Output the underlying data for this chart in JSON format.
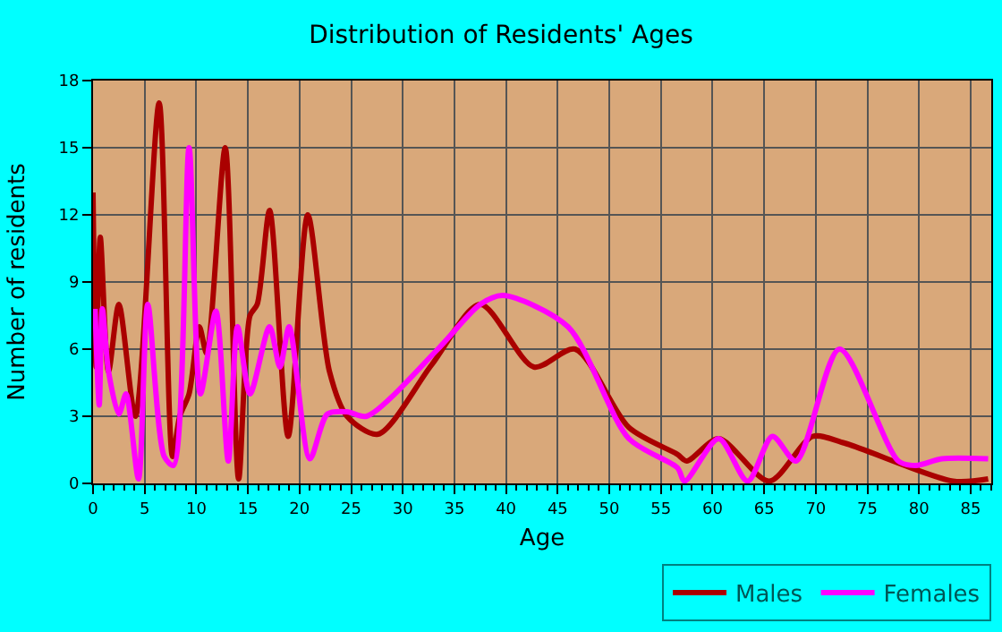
{
  "chart_data": {
    "type": "line",
    "title": "Distribution of Residents' Ages",
    "xlabel": "Age",
    "ylabel": "Number of residents",
    "xlim": [
      0,
      87
    ],
    "xticks": [
      0,
      5,
      10,
      15,
      20,
      25,
      30,
      35,
      40,
      45,
      50,
      55,
      60,
      65,
      70,
      75,
      80,
      85
    ],
    "ylim": [
      0,
      18
    ],
    "yticks": [
      0,
      3,
      6,
      9,
      12,
      15,
      18
    ],
    "grid": true,
    "legend": "bottom right",
    "marker": "none",
    "line_style": "solid",
    "series": [
      {
        "name": "Males",
        "color": "#aa0000",
        "x": [
          0,
          0.3,
          0.7,
          1.5,
          2.5,
          4.1,
          6.4,
          7.7,
          8.4,
          9.3,
          10.3,
          11.0,
          12.8,
          14.1,
          15.2,
          15.9,
          17.1,
          18.9,
          20.8,
          22.9,
          24.6,
          27.6,
          32.8,
          37.5,
          42.7,
          46.7,
          51.9,
          56.6,
          57.5,
          60.6,
          65.5,
          69.7,
          72.8,
          83.3,
          86.7
        ],
        "values": [
          13,
          5.2,
          11,
          5,
          8,
          3,
          17,
          1.2,
          3,
          4,
          7,
          5.8,
          15,
          0.2,
          7.5,
          8,
          12.2,
          2.1,
          12,
          5,
          3,
          2.2,
          5.3,
          8,
          5.2,
          6,
          2.5,
          1.3,
          1,
          2,
          0.1,
          2.1,
          1.8,
          0.1,
          0.2
        ]
      },
      {
        "name": "Females",
        "color": "#ff00ff",
        "x": [
          0.2,
          0.6,
          0.9,
          1.5,
          2.5,
          3.2,
          4.4,
          5.3,
          6.9,
          7.8,
          9.3,
          10.4,
          11.9,
          13.1,
          14,
          15.2,
          17.1,
          18.1,
          19,
          21,
          22.7,
          24.6,
          26.5,
          33.4,
          37.5,
          39.7,
          46,
          51.9,
          56.6,
          57.3,
          60.6,
          63.4,
          65.8,
          68.1,
          72.3,
          78,
          79.7,
          82.2,
          86.7
        ],
        "values": [
          7.8,
          3.5,
          7.8,
          5,
          3.1,
          4,
          0.2,
          8,
          1.2,
          0.8,
          15,
          4,
          7.7,
          1,
          7,
          4,
          7,
          5.2,
          7,
          1.1,
          3.1,
          3.2,
          3,
          6,
          8,
          8.4,
          7,
          2,
          0.7,
          0.1,
          2,
          0.1,
          2.1,
          1,
          6,
          1,
          0.8,
          1.1,
          1.1
        ]
      }
    ]
  }
}
